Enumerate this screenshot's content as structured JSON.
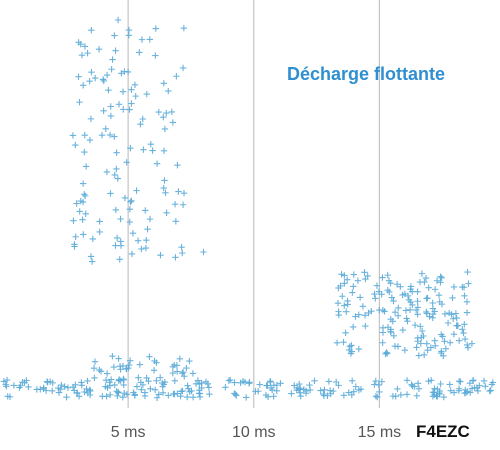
{
  "chart_data": {
    "type": "scatter",
    "title": "Décharge flottante",
    "credit": "F4EZC",
    "xlabel": "",
    "ylabel": "",
    "xlim": [
      -0.1,
      19.8
    ],
    "ylim": [
      0,
      1
    ],
    "x_ticks": [
      {
        "value": 5,
        "label": "5 ms"
      },
      {
        "value": 10,
        "label": "10 ms"
      },
      {
        "value": 15,
        "label": "15 ms"
      }
    ],
    "grid": "vertical-only",
    "marker": "plus",
    "color": "#5aaad8",
    "clusters": [
      {
        "x": [
          0,
          19.6
        ],
        "y": [
          0.005,
          0.05
        ],
        "count": 230
      },
      {
        "x": [
          3.5,
          7.6
        ],
        "y": [
          0.04,
          0.11
        ],
        "count": 45
      },
      {
        "x": [
          2.8,
          7.3
        ],
        "y": [
          0.34,
          0.93
        ],
        "count": 135
      },
      {
        "x": [
          13.3,
          18.7
        ],
        "y": [
          0.11,
          0.32
        ],
        "count": 170
      }
    ],
    "points": [
      {
        "x": 4.6,
        "y": 0.95
      },
      {
        "x": 8.0,
        "y": 0.37
      }
    ]
  }
}
